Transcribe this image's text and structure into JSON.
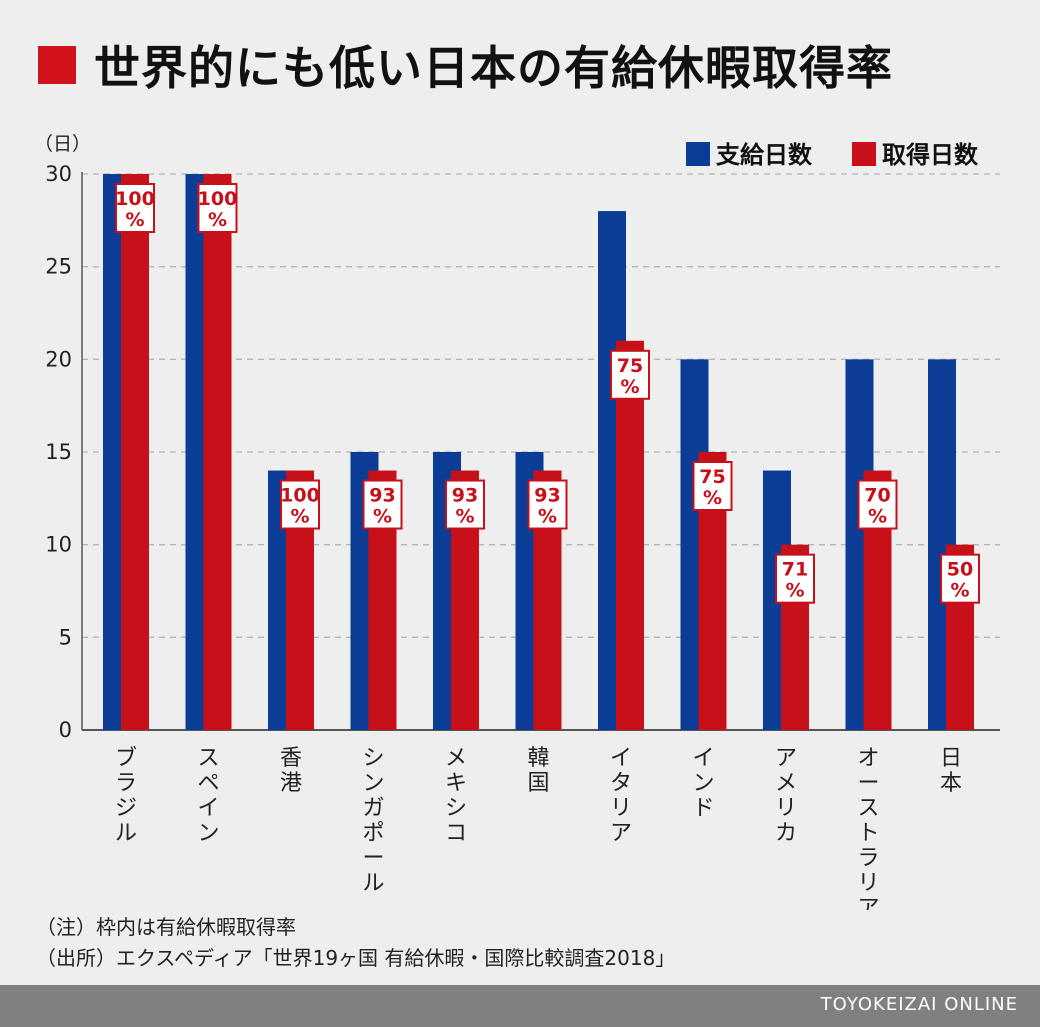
{
  "title": "世界的にも低い日本の有給休暇取得率",
  "accent_color": "#d0121b",
  "chart_data": {
    "type": "bar",
    "categories": [
      "ブラジル",
      "スペイン",
      "香港",
      "シンガポール",
      "メキシコ",
      "韓国",
      "イタリア",
      "インド",
      "アメリカ",
      "オーストラリア",
      "日本"
    ],
    "series": [
      {
        "name": "支給日数",
        "color": "#0c3d96",
        "values": [
          30,
          30,
          14,
          15,
          15,
          15,
          28,
          20,
          14,
          20,
          20
        ]
      },
      {
        "name": "取得日数",
        "color": "#c8101a",
        "values": [
          30,
          30,
          14,
          14,
          14,
          14,
          21,
          15,
          10,
          14,
          10
        ]
      }
    ],
    "rate_labels": [
      "100",
      "100",
      "100",
      "93",
      "93",
      "93",
      "75",
      "75",
      "71",
      "70",
      "50"
    ],
    "rate_unit": "%",
    "y_unit": "（日）",
    "ylim": [
      0,
      30
    ],
    "yticks": [
      0,
      5,
      10,
      15,
      20,
      25,
      30
    ],
    "grid": true,
    "legend_position": "top-right"
  },
  "notes": [
    "（注）枠内は有給休暇取得率",
    "（出所）エクスペディア「世界19ヶ国 有給休暇・国際比較調査2018」"
  ],
  "footer": {
    "brand": "TOYOKEIZAI ONLINE"
  }
}
